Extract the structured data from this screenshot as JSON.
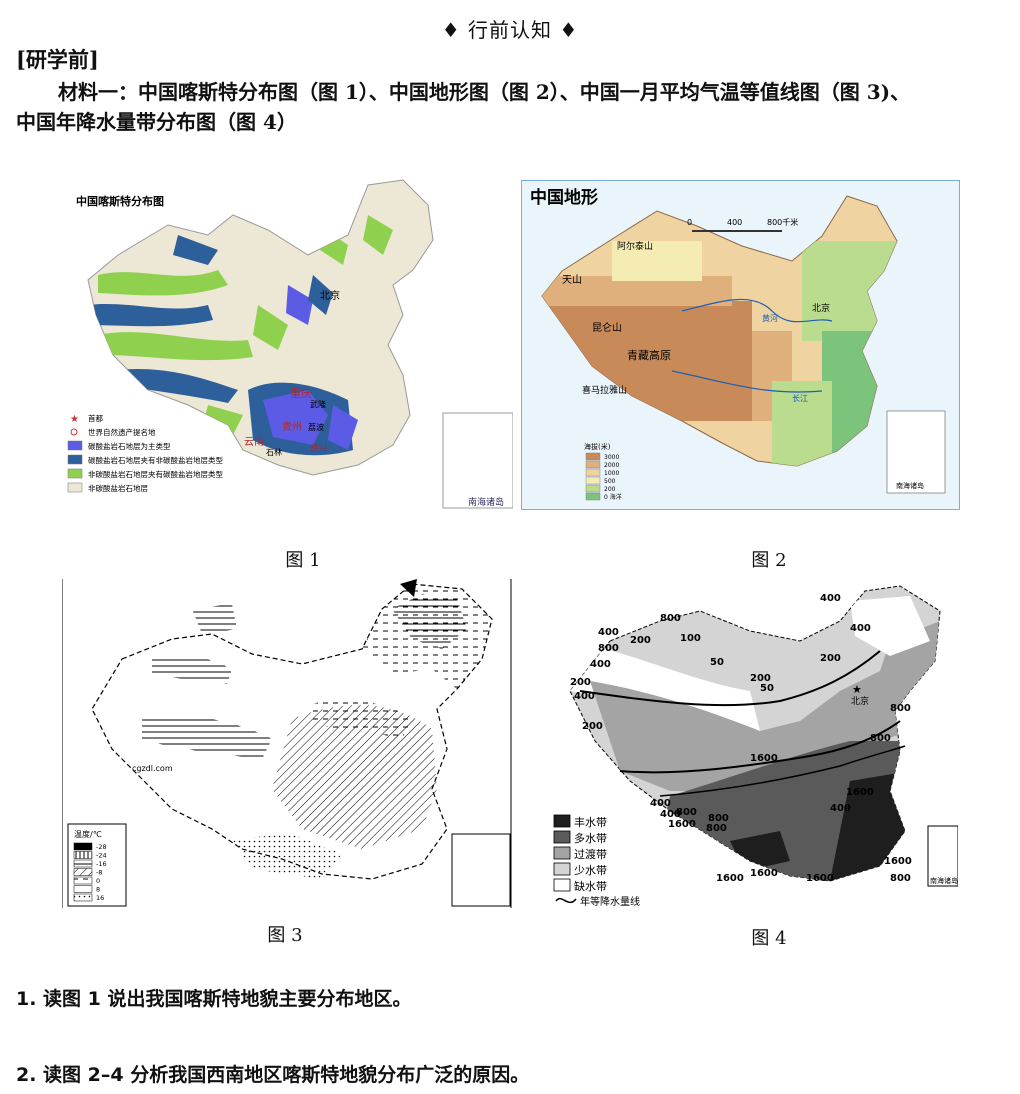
{
  "heading": "♦ 行前认知 ♦",
  "pre_label": "[研学前]",
  "intro_line1": "材料一：中国喀斯特分布图（图 1）、中国地形图（图 2）、中国一月平均气温等值线图（图 3)、",
  "intro_line2": "中国年降水量带分布图（图 4）",
  "fig1": {
    "caption": "图 1",
    "title": "中国喀斯特分布图",
    "labels": {
      "beijing": "北京",
      "chongqing": "重庆",
      "guizhou": "贵州",
      "yunnan": "云南",
      "guilin": "桂林",
      "guangxi": "广西",
      "wulong": "武隆",
      "libo": "荔波",
      "shilin": "石林",
      "nanhai": "南海诸岛"
    },
    "legend": [
      {
        "symbol": "star",
        "label": "首都"
      },
      {
        "symbol": "circle",
        "label": "世界自然遗产提名地"
      },
      {
        "color": "#5b5be6",
        "label": "碳酸盐岩石地层为主类型"
      },
      {
        "color": "#2d5f9a",
        "label": "碳酸盐岩石地层夹有非碳酸盐岩地层类型"
      },
      {
        "color": "#8fd14f",
        "label": "非碳酸盐岩石地层夹有碳酸盐岩地层类型"
      },
      {
        "color": "#ede7d6",
        "label": "非碳酸盐岩石地层"
      }
    ]
  },
  "fig2": {
    "caption": "图 2",
    "title": "中国地形",
    "scale": {
      "zero": "0",
      "mid": "400",
      "end": "800千米"
    },
    "labels": {
      "beijing": "北京",
      "nanhai": "南海诸岛",
      "tianshan": "天山",
      "qinghai_tibet": "青藏高原",
      "altai": "阿尔泰山",
      "kunlun": "昆仑山",
      "himalaya": "喜马拉雅山",
      "changjiang": "长江",
      "huanghe": "黄河"
    },
    "legend_title": "海拔(米)",
    "legend": [
      {
        "color": "#c98a5a",
        "label": "3000"
      },
      {
        "color": "#e0b07c",
        "label": "2000"
      },
      {
        "color": "#efd3a1",
        "label": "1000"
      },
      {
        "color": "#f5ecb4",
        "label": "500"
      },
      {
        "color": "#b9dc8e",
        "label": "200"
      },
      {
        "color": "#7cc47c",
        "label": "0 海洋"
      }
    ]
  },
  "fig3": {
    "caption": "图 3",
    "watermark": "cgzdl.com",
    "legend_title": "温度/℃",
    "legend": [
      "-28",
      "-24",
      "-16",
      "-8",
      "0",
      "8",
      "16"
    ]
  },
  "fig4": {
    "caption": "图 4",
    "beijing": "北京",
    "nanhai": "南海诸岛",
    "legend": [
      {
        "color": "#1e1e1e",
        "label": "丰水带"
      },
      {
        "color": "#5a5a5a",
        "label": "多水带"
      },
      {
        "color": "#a4a4a4",
        "label": "过渡带"
      },
      {
        "color": "#d4d4d4",
        "label": "少水带"
      },
      {
        "color": "#ffffff",
        "label": "缺水带"
      }
    ],
    "isoline_label": "年等降水量线",
    "contours": [
      "400",
      "800",
      "200",
      "400",
      "800",
      "200",
      "400",
      "50",
      "200",
      "400",
      "50",
      "200",
      "800",
      "800",
      "400",
      "800",
      "1600",
      "1600",
      "1600",
      "1600",
      "1600",
      "1600",
      "1600",
      "800",
      "400",
      "400",
      "800",
      "800",
      "100",
      "200",
      "400"
    ]
  },
  "questions": [
    "1. 读图 1 说出我国喀斯特地貌主要分布地区。",
    "2. 读图 2–4 分析我国西南地区喀斯特地貌分布广泛的原因。"
  ]
}
